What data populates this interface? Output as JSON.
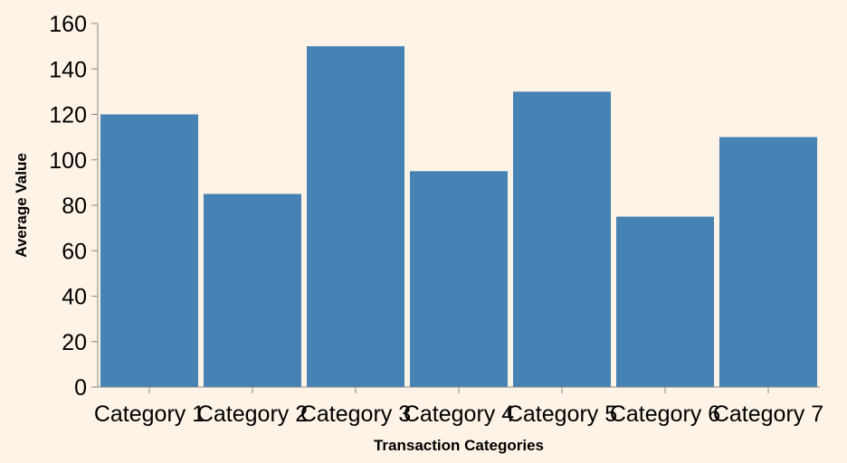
{
  "chart_data": {
    "type": "bar",
    "title": "",
    "xlabel": "Transaction Categories",
    "ylabel": "Average Value",
    "categories": [
      "Category 1",
      "Category 2",
      "Category 3",
      "Category 4",
      "Category 5",
      "Category 6",
      "Category 7"
    ],
    "values": [
      120,
      85,
      150,
      95,
      130,
      75,
      110
    ],
    "ylim": [
      0,
      160
    ],
    "yticks": [
      "0",
      "20",
      "40",
      "60",
      "80",
      "100",
      "120",
      "140",
      "160"
    ],
    "grid": false,
    "bar_color": "#4682b4",
    "background_color": "#fdf3e6",
    "axis_color": "#888888"
  }
}
